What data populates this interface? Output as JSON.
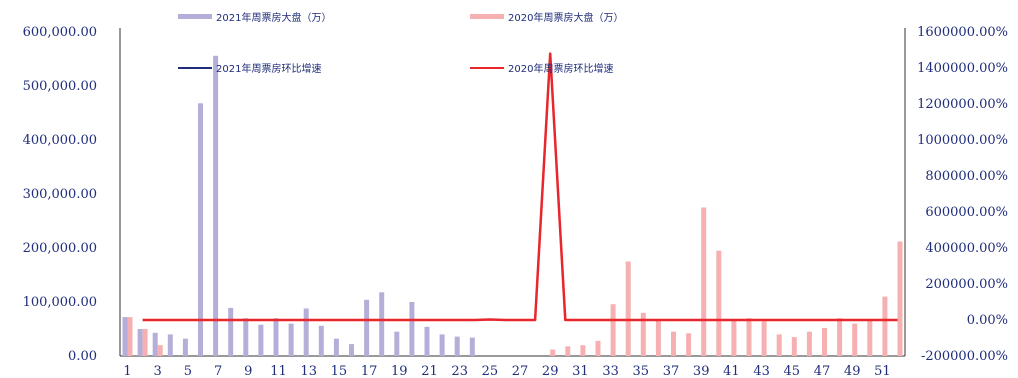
{
  "chart_data": {
    "type": "bar",
    "legend": [
      "2021年周票房大盘（万）",
      "2020年周票房大盘（万）",
      "2021年周票房环比增速",
      "2020年周票房环比增速"
    ],
    "x_ticks": [
      "1",
      "3",
      "5",
      "7",
      "9",
      "11",
      "13",
      "15",
      "17",
      "19",
      "21",
      "23",
      "25",
      "27",
      "29",
      "31",
      "33",
      "35",
      "37",
      "39",
      "41",
      "43",
      "45",
      "47",
      "49",
      "51"
    ],
    "y_left_ticks": [
      "0.00",
      "100,000.00",
      "200,000.00",
      "300,000.00",
      "400,000.00",
      "500,000.00",
      "600,000.00"
    ],
    "y_right_ticks": [
      "-200000.00%",
      "0.00%",
      "200000.00%",
      "400000.00%",
      "600000.00%",
      "800000.00%",
      "1000000.00%",
      "1200000.00%",
      "1400000.00%",
      "1600000.00%"
    ],
    "y_left_range": [
      0,
      600000
    ],
    "y_right_range": [
      -200000,
      1600000
    ],
    "weeks": [
      1,
      2,
      3,
      4,
      5,
      6,
      7,
      8,
      9,
      10,
      11,
      12,
      13,
      14,
      15,
      16,
      17,
      18,
      19,
      20,
      21,
      22,
      23,
      24,
      25,
      26,
      27,
      28,
      29,
      30,
      31,
      32,
      33,
      34,
      35,
      36,
      37,
      38,
      39,
      40,
      41,
      42,
      43,
      44,
      45,
      46,
      47,
      48,
      49,
      50,
      51,
      52
    ],
    "series": [
      {
        "name": "2021年周票房大盘（万）",
        "kind": "bar",
        "axis": "left",
        "color": "#b4aed8",
        "values": [
          72000,
          50000,
          43000,
          40000,
          32000,
          468000,
          556000,
          89000,
          70000,
          58000,
          70000,
          60000,
          88000,
          56000,
          32000,
          22000,
          104000,
          118000,
          45000,
          100000,
          54000,
          40000,
          36000,
          34000,
          null,
          null,
          null,
          null,
          null,
          null,
          null,
          null,
          null,
          null,
          null,
          null,
          null,
          null,
          null,
          null,
          null,
          null,
          null,
          null,
          null,
          null,
          null,
          null,
          null,
          null,
          null,
          null
        ]
      },
      {
        "name": "2020年周票房大盘（万）",
        "kind": "bar",
        "axis": "left",
        "color": "#f6b0b2",
        "values": [
          72000,
          50000,
          20000,
          null,
          null,
          null,
          null,
          null,
          null,
          null,
          null,
          null,
          null,
          null,
          null,
          null,
          null,
          null,
          null,
          null,
          null,
          null,
          null,
          null,
          null,
          null,
          null,
          null,
          12000,
          18000,
          20000,
          28000,
          96000,
          175000,
          80000,
          65000,
          45000,
          42000,
          275000,
          195000,
          65000,
          70000,
          64000,
          40000,
          35000,
          45000,
          52000,
          70000,
          60000,
          68000,
          110000,
          212000
        ]
      },
      {
        "name": "2021年周票房环比增速",
        "kind": "line",
        "axis": "right",
        "color": "#1f2d7a",
        "values": []
      },
      {
        "name": "2020年周票房环比增速",
        "kind": "line",
        "axis": "right",
        "color": "#e8262b",
        "values": [
          null,
          0,
          0,
          0,
          0,
          0,
          0,
          0,
          0,
          0,
          0,
          0,
          0,
          0,
          0,
          0,
          0,
          0,
          0,
          0,
          0,
          0,
          0,
          0,
          3000,
          0,
          0,
          0,
          1480000,
          0,
          0,
          0,
          0,
          0,
          0,
          0,
          0,
          0,
          0,
          0,
          0,
          0,
          0,
          0,
          0,
          0,
          0,
          0,
          0,
          0,
          0,
          0
        ]
      }
    ]
  }
}
